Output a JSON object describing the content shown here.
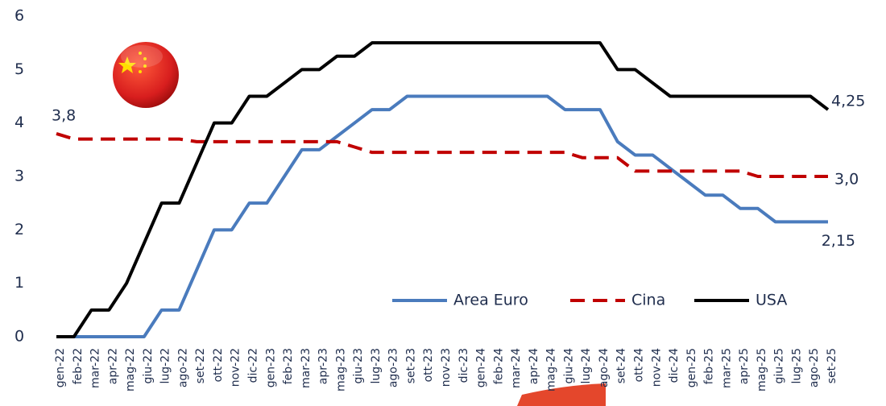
{
  "chart_data": {
    "type": "line",
    "categories": [
      "gen-22",
      "feb-22",
      "mar-22",
      "apr-22",
      "mag-22",
      "giu-22",
      "lug-22",
      "ago-22",
      "set-22",
      "ott-22",
      "nov-22",
      "dic-22",
      "gen-23",
      "feb-23",
      "mar-23",
      "apr-23",
      "mag-23",
      "giu-23",
      "lug-23",
      "ago-23",
      "set-23",
      "ott-23",
      "nov-23",
      "dic-23",
      "gen-24",
      "feb-24",
      "mar-24",
      "apr-24",
      "mag-24",
      "giu-24",
      "lug-24",
      "ago-24",
      "set-24",
      "ott-24",
      "nov-24",
      "dic-24",
      "gen-25",
      "feb-25",
      "mar-25",
      "apr-25",
      "mag-25",
      "giu-25",
      "lug-25",
      "ago-25",
      "set-25"
    ],
    "series": [
      {
        "name": "Area Euro",
        "color": "#4a7bbd",
        "dash": false,
        "values": [
          0,
          0,
          0,
          0,
          0,
          0,
          0.5,
          0.5,
          1.25,
          2,
          2,
          2.5,
          2.5,
          3,
          3.5,
          3.5,
          3.75,
          4,
          4.25,
          4.25,
          4.5,
          4.5,
          4.5,
          4.5,
          4.5,
          4.5,
          4.5,
          4.5,
          4.5,
          4.25,
          4.25,
          4.25,
          3.65,
          3.4,
          3.4,
          3.15,
          2.9,
          2.65,
          2.65,
          2.4,
          2.4,
          2.15,
          2.15,
          2.15,
          2.15
        ],
        "value_labels": [
          null,
          null,
          null,
          null,
          null,
          null,
          null,
          null,
          null,
          null,
          null,
          null,
          null,
          null,
          null,
          null,
          null,
          null,
          null,
          null,
          null,
          null,
          null,
          null,
          null,
          null,
          null,
          null,
          null,
          null,
          null,
          null,
          null,
          null,
          null,
          null,
          null,
          null,
          null,
          null,
          null,
          null,
          null,
          null,
          "2,15"
        ]
      },
      {
        "name": "Cina",
        "color": "#c00000",
        "dash": true,
        "values": [
          3.8,
          3.7,
          3.7,
          3.7,
          3.7,
          3.7,
          3.7,
          3.7,
          3.65,
          3.65,
          3.65,
          3.65,
          3.65,
          3.65,
          3.65,
          3.65,
          3.65,
          3.55,
          3.45,
          3.45,
          3.45,
          3.45,
          3.45,
          3.45,
          3.45,
          3.45,
          3.45,
          3.45,
          3.45,
          3.45,
          3.35,
          3.35,
          3.35,
          3.1,
          3.1,
          3.1,
          3.1,
          3.1,
          3.1,
          3.1,
          3,
          3,
          3,
          3,
          3
        ],
        "value_labels": [
          "3,8",
          null,
          null,
          null,
          null,
          null,
          null,
          null,
          null,
          null,
          null,
          null,
          null,
          null,
          null,
          null,
          null,
          null,
          null,
          null,
          null,
          null,
          null,
          null,
          null,
          null,
          null,
          null,
          null,
          null,
          null,
          null,
          null,
          null,
          null,
          null,
          null,
          null,
          null,
          null,
          null,
          null,
          null,
          null,
          "3,0"
        ]
      },
      {
        "name": "USA",
        "color": "#000000",
        "dash": false,
        "values": [
          0,
          0,
          0.5,
          0.5,
          1,
          1.75,
          2.5,
          2.5,
          3.25,
          4,
          4,
          4.5,
          4.5,
          4.75,
          5,
          5,
          5.25,
          5.25,
          5.5,
          5.5,
          5.5,
          5.5,
          5.5,
          5.5,
          5.5,
          5.5,
          5.5,
          5.5,
          5.5,
          5.5,
          5.5,
          5.5,
          5,
          5,
          4.75,
          4.5,
          4.5,
          4.5,
          4.5,
          4.5,
          4.5,
          4.5,
          4.5,
          4.5,
          4.25
        ],
        "value_labels": [
          null,
          null,
          null,
          null,
          null,
          null,
          null,
          null,
          null,
          null,
          null,
          null,
          null,
          null,
          null,
          null,
          null,
          null,
          null,
          null,
          null,
          null,
          null,
          null,
          null,
          null,
          null,
          null,
          null,
          null,
          null,
          null,
          null,
          null,
          null,
          null,
          null,
          null,
          null,
          null,
          null,
          null,
          null,
          null,
          "4,25"
        ]
      }
    ],
    "ylim": [
      0,
      6
    ],
    "yticks": [
      0,
      1,
      2,
      3,
      4,
      5,
      6
    ],
    "grid": false,
    "legend": "bottom"
  }
}
